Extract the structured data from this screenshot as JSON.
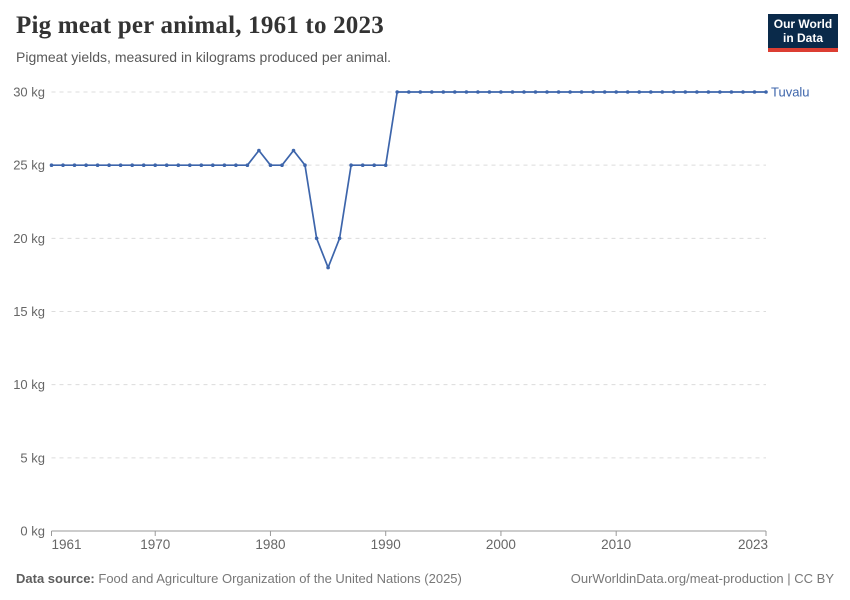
{
  "header": {
    "title": "Pig meat per animal, 1961 to 2023",
    "subtitle": "Pigmeat yields, measured in kilograms produced per animal.",
    "logo": {
      "line1": "Our World",
      "line2": "in Data",
      "bg_color": "#0a2a4a",
      "accent_color": "#dc3e32"
    }
  },
  "chart_data": {
    "type": "line",
    "title": "Pig meat per animal, 1961 to 2023",
    "xlabel": "",
    "ylabel": "",
    "xlim": [
      1961,
      2023
    ],
    "ylim": [
      0,
      30
    ],
    "grid": "horizontal-dashed",
    "legend_position": "line-end-label",
    "xticks": [
      1961,
      1970,
      1980,
      1990,
      2000,
      2010,
      2023
    ],
    "yticks": [
      {
        "v": 0,
        "label": "0 kg"
      },
      {
        "v": 5,
        "label": "5 kg"
      },
      {
        "v": 10,
        "label": "10 kg"
      },
      {
        "v": 15,
        "label": "15 kg"
      },
      {
        "v": 20,
        "label": "20 kg"
      },
      {
        "v": 25,
        "label": "25 kg"
      },
      {
        "v": 30,
        "label": "30 kg"
      }
    ],
    "series": [
      {
        "name": "Tuvalu",
        "color": "#3d65ab",
        "start_year": 1961,
        "values": [
          25,
          25,
          25,
          25,
          25,
          25,
          25,
          25,
          25,
          25,
          25,
          25,
          25,
          25,
          25,
          25,
          25,
          25,
          26,
          25,
          25,
          26,
          25,
          20,
          18,
          20,
          25,
          25,
          25,
          25,
          30,
          30,
          30,
          30,
          30,
          30,
          30,
          30,
          30,
          30,
          30,
          30,
          30,
          30,
          30,
          30,
          30,
          30,
          30,
          30,
          30,
          30,
          30,
          30,
          30,
          30,
          30,
          30,
          30,
          30,
          30,
          30,
          30
        ]
      }
    ]
  },
  "footer": {
    "source_label": "Data source:",
    "source_text": "Food and Agriculture Organization of the United Nations (2025)",
    "right_text": "OurWorldinData.org/meat-production | CC BY"
  }
}
